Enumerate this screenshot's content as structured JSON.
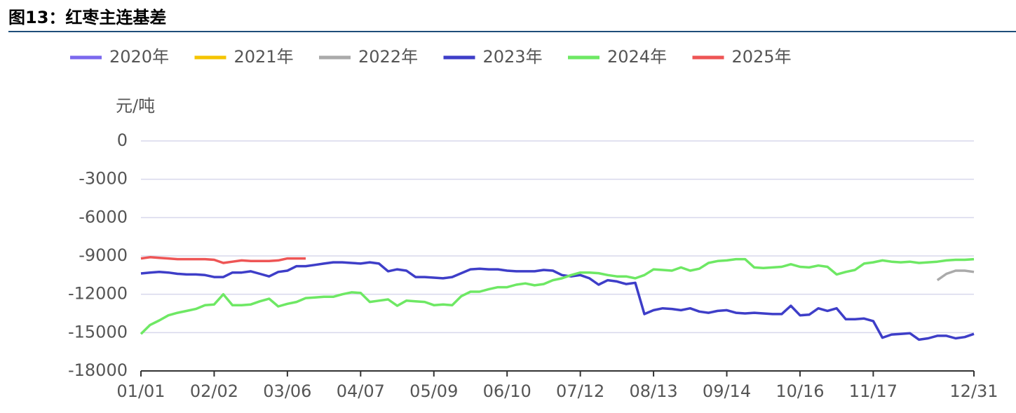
{
  "chart_data": {
    "type": "line",
    "title": "图13：红枣主连基差",
    "y_label": "元/吨",
    "categories": [
      "01/01",
      null,
      null,
      null,
      null,
      null,
      null,
      null,
      "02/02",
      null,
      null,
      null,
      null,
      null,
      null,
      null,
      "03/06",
      null,
      null,
      null,
      null,
      null,
      null,
      null,
      "04/07",
      null,
      null,
      null,
      null,
      null,
      null,
      null,
      "05/09",
      null,
      null,
      null,
      null,
      null,
      null,
      null,
      "06/10",
      null,
      null,
      null,
      null,
      null,
      null,
      null,
      "07/12",
      null,
      null,
      null,
      null,
      null,
      null,
      null,
      "08/13",
      null,
      null,
      null,
      null,
      null,
      null,
      null,
      "09/14",
      null,
      null,
      null,
      null,
      null,
      null,
      null,
      "10/16",
      null,
      null,
      null,
      null,
      null,
      null,
      null,
      "11/17",
      null,
      null,
      null,
      null,
      null,
      null,
      null,
      null,
      null,
      null,
      "12/31"
    ],
    "series": [
      {
        "name": "2020年",
        "color": "#7b68ee",
        "values": [
          null,
          null,
          null,
          null,
          null,
          null,
          null,
          null,
          null,
          null,
          null,
          null,
          null,
          null,
          null,
          null,
          null,
          null,
          null,
          null,
          null,
          null,
          null,
          null,
          null,
          null,
          null,
          null,
          null,
          null,
          null,
          null,
          null,
          null,
          null,
          null,
          null,
          null,
          null,
          null,
          null,
          null,
          null,
          null,
          null,
          null,
          null,
          null,
          null,
          null,
          null,
          null,
          null,
          null,
          null,
          null,
          null,
          null,
          null,
          null,
          null,
          null,
          null,
          null,
          null,
          null,
          null,
          null,
          null,
          null,
          null,
          null,
          null,
          null,
          null,
          null,
          null,
          null,
          null,
          null,
          null,
          null,
          null,
          null,
          null,
          null,
          null,
          null,
          null,
          null,
          null,
          null
        ]
      },
      {
        "name": "2021年",
        "color": "#f5c400",
        "values": [
          null,
          null,
          null,
          null,
          null,
          null,
          null,
          null,
          null,
          null,
          null,
          null,
          null,
          null,
          null,
          null,
          null,
          null,
          null,
          null,
          null,
          null,
          null,
          null,
          null,
          null,
          null,
          null,
          null,
          null,
          null,
          null,
          null,
          null,
          null,
          null,
          null,
          null,
          null,
          null,
          null,
          null,
          null,
          null,
          null,
          null,
          null,
          null,
          null,
          null,
          null,
          null,
          null,
          null,
          null,
          null,
          null,
          null,
          null,
          null,
          null,
          null,
          null,
          null,
          null,
          null,
          null,
          null,
          null,
          null,
          null,
          null,
          null,
          null,
          null,
          null,
          null,
          null,
          null,
          null,
          null,
          null,
          null,
          null,
          null,
          null,
          null,
          null,
          null,
          null,
          null,
          null
        ]
      },
      {
        "name": "2022年",
        "color": "#aaaaaa",
        "values": [
          null,
          null,
          null,
          null,
          null,
          null,
          null,
          null,
          null,
          null,
          null,
          null,
          null,
          null,
          null,
          null,
          null,
          null,
          null,
          null,
          null,
          null,
          null,
          null,
          null,
          null,
          null,
          null,
          null,
          null,
          null,
          null,
          null,
          null,
          null,
          null,
          null,
          null,
          null,
          null,
          null,
          null,
          null,
          null,
          null,
          null,
          null,
          null,
          null,
          null,
          null,
          null,
          null,
          null,
          null,
          null,
          null,
          null,
          null,
          null,
          null,
          null,
          null,
          null,
          null,
          null,
          null,
          null,
          null,
          null,
          null,
          null,
          null,
          null,
          null,
          null,
          null,
          null,
          null,
          null,
          null,
          null,
          null,
          null,
          null,
          null,
          null,
          -10900,
          -10400,
          -10150,
          -10150,
          -10250
        ]
      },
      {
        "name": "2023年",
        "color": "#3e3ec8",
        "values": [
          -10370,
          -10300,
          -10250,
          -10300,
          -10400,
          -10450,
          -10450,
          -10500,
          -10650,
          -10650,
          -10300,
          -10300,
          -10200,
          -10400,
          -10600,
          -10250,
          -10150,
          -9800,
          -9800,
          -9700,
          -9600,
          -9500,
          -9500,
          -9550,
          -9600,
          -9500,
          -9600,
          -10200,
          -10050,
          -10150,
          -10650,
          -10650,
          -10700,
          -10750,
          -10650,
          -10350,
          -10050,
          -10000,
          -10050,
          -10050,
          -10150,
          -10200,
          -10200,
          -10200,
          -10100,
          -10150,
          -10500,
          -10600,
          -10500,
          -10750,
          -11250,
          -10900,
          -11000,
          -11200,
          -11100,
          -13550,
          -13250,
          -13100,
          -13150,
          -13250,
          -13100,
          -13350,
          -13450,
          -13300,
          -13250,
          -13450,
          -13500,
          -13450,
          -13500,
          -13550,
          -13550,
          -12900,
          -13650,
          -13600,
          -13100,
          -13300,
          -13100,
          -13950,
          -13950,
          -13900,
          -14100,
          -15400,
          -15150,
          -15100,
          -15050,
          -15550,
          -15450,
          -15250,
          -15250,
          -15450,
          -15350,
          -15100
        ]
      },
      {
        "name": "2024年",
        "color": "#6ee864",
        "values": [
          -15100,
          -14400,
          -14050,
          -13650,
          -13450,
          -13300,
          -13150,
          -12850,
          -12800,
          -12000,
          -12850,
          -12850,
          -12800,
          -12550,
          -12350,
          -12950,
          -12750,
          -12600,
          -12300,
          -12250,
          -12200,
          -12200,
          -12000,
          -11850,
          -11900,
          -12600,
          -12500,
          -12400,
          -12900,
          -12500,
          -12550,
          -12600,
          -12850,
          -12800,
          -12850,
          -12150,
          -11800,
          -11800,
          -11600,
          -11450,
          -11450,
          -11250,
          -11150,
          -11300,
          -11200,
          -10900,
          -10750,
          -10500,
          -10300,
          -10300,
          -10350,
          -10500,
          -10600,
          -10600,
          -10750,
          -10500,
          -10050,
          -10100,
          -10150,
          -9900,
          -10150,
          -10000,
          -9550,
          -9400,
          -9350,
          -9250,
          -9250,
          -9900,
          -9950,
          -9900,
          -9850,
          -9650,
          -9850,
          -9900,
          -9750,
          -9850,
          -10450,
          -10250,
          -10100,
          -9600,
          -9500,
          -9350,
          -9450,
          -9500,
          -9450,
          -9550,
          -9500,
          -9450,
          -9350,
          -9300,
          -9300,
          -9250
        ]
      },
      {
        "name": "2025年",
        "color": "#ee5555",
        "values": [
          -9200,
          -9100,
          -9150,
          -9200,
          -9250,
          -9250,
          -9250,
          -9250,
          -9300,
          -9550,
          -9450,
          -9350,
          -9400,
          -9400,
          -9400,
          -9350,
          -9200,
          -9200,
          -9200,
          null,
          null,
          null,
          null,
          null,
          null,
          null,
          null,
          null,
          null,
          null,
          null,
          null,
          null,
          null,
          null,
          null,
          null,
          null,
          null,
          null,
          null,
          null,
          null,
          null,
          null,
          null,
          null,
          null,
          null,
          null,
          null,
          null,
          null,
          null,
          null,
          null,
          null,
          null,
          null,
          null,
          null,
          null,
          null,
          null,
          null,
          null,
          null,
          null,
          null,
          null,
          null,
          null,
          null,
          null,
          null,
          null,
          null,
          null,
          null,
          null,
          null,
          null,
          null,
          null,
          null,
          null,
          null,
          null,
          null,
          null,
          null,
          null
        ]
      }
    ],
    "ylim": [
      -18000,
      0
    ],
    "yticks": [
      0,
      -3000,
      -6000,
      -9000,
      -12000,
      -15000,
      -18000
    ],
    "grid": true
  }
}
